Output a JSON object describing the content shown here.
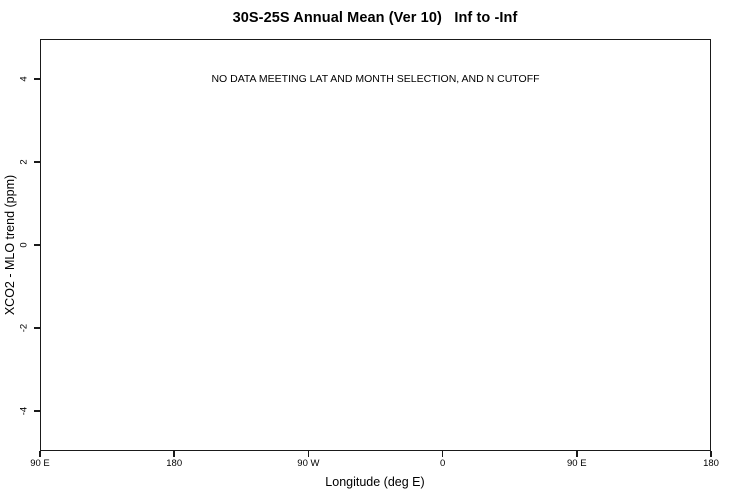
{
  "figure": {
    "background_color": "#ffffff",
    "line_color": "#1a1a1a",
    "text_color": "#000000"
  },
  "chart_data": {
    "type": "scatter",
    "title": "30S-25S Annual Mean (Ver 10)   Inf to -Inf",
    "xlabel": "Longitude (deg E)",
    "ylabel": "XCO2 - MLO trend (ppm)",
    "annotation": "NO DATA MEETING LAT AND MONTH SELECTION, AND N CUTOFF",
    "annotation_y_value": 4,
    "series": [],
    "grid": false,
    "legend": null,
    "x_axis": {
      "lim": [
        90,
        540
      ],
      "ticks": [
        {
          "value": 90,
          "label": "90 E"
        },
        {
          "value": 180,
          "label": "180"
        },
        {
          "value": 270,
          "label": "90 W"
        },
        {
          "value": 360,
          "label": "0"
        },
        {
          "value": 450,
          "label": "90 E"
        },
        {
          "value": 540,
          "label": "180"
        }
      ]
    },
    "y_axis": {
      "lim": [
        -4.97,
        4.97
      ],
      "ticks": [
        {
          "value": -4,
          "label": "-4"
        },
        {
          "value": -2,
          "label": "-2"
        },
        {
          "value": 0,
          "label": "0"
        },
        {
          "value": 2,
          "label": "2"
        },
        {
          "value": 4,
          "label": "4"
        }
      ]
    }
  }
}
